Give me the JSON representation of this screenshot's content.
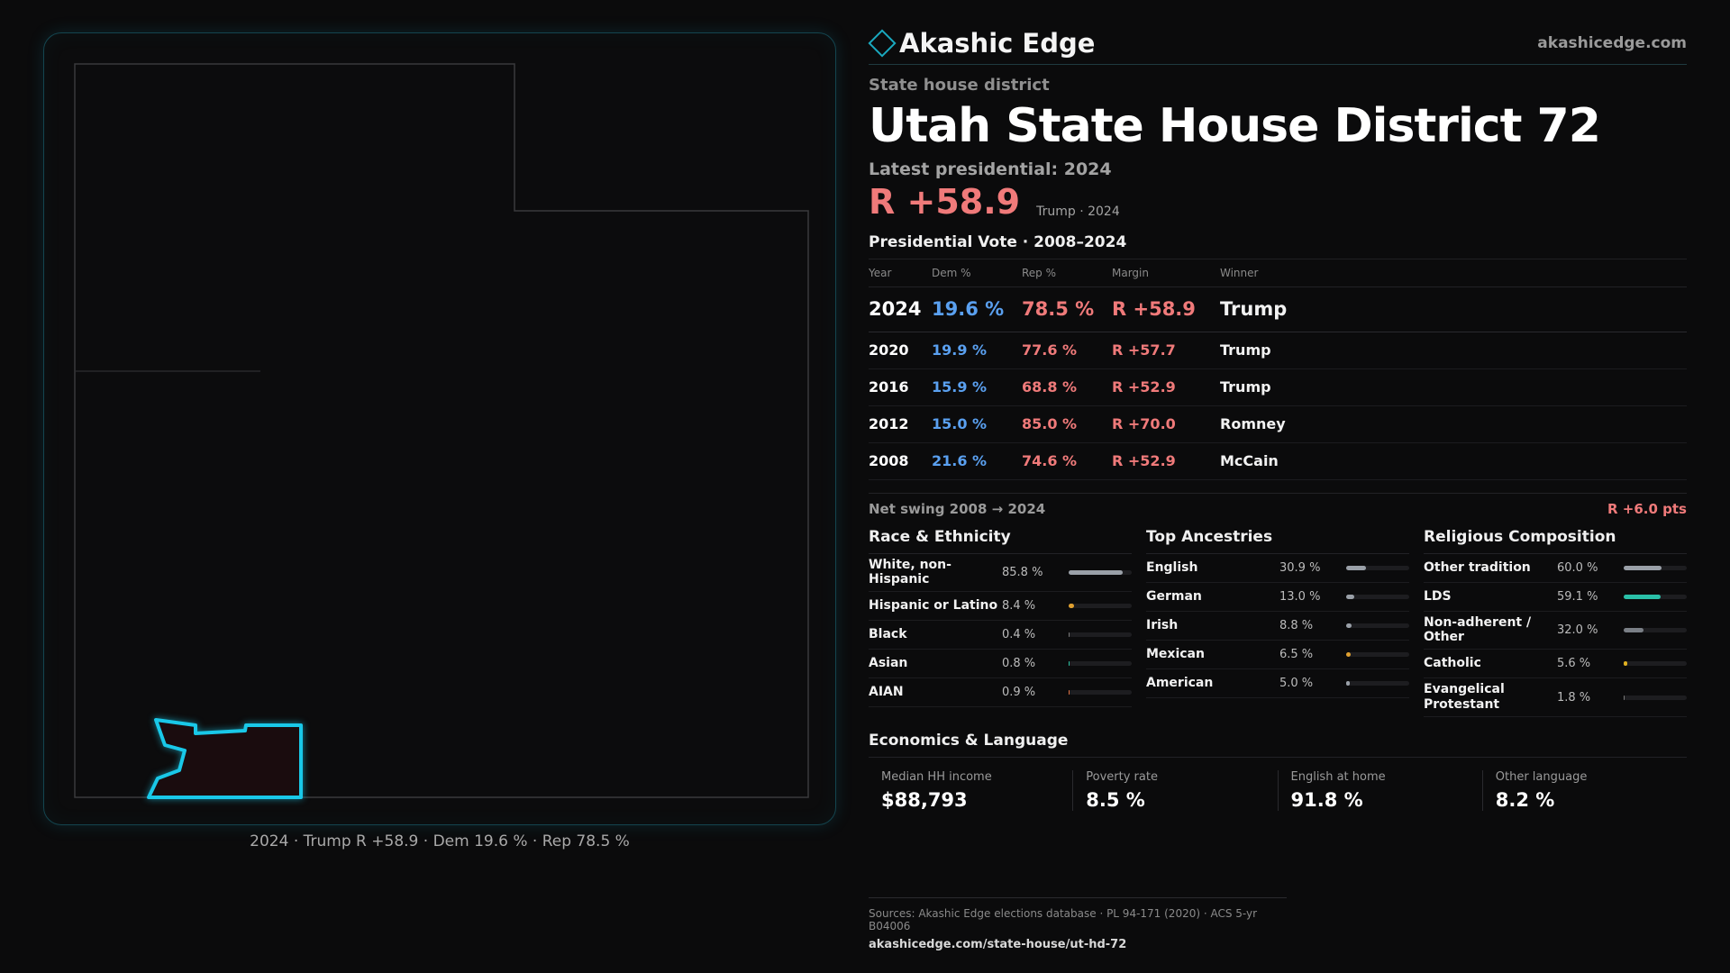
{
  "brand": {
    "name": "Akashic Edge",
    "url": "akashicedge.com",
    "logo_icon": "diamond-icon"
  },
  "district": {
    "type": "State house district",
    "title": "Utah State House District 72",
    "latest_label": "Latest presidential: 2024",
    "margin": "R +58.9",
    "margin_sub": "Trump · 2024"
  },
  "votes": {
    "heading": "Presidential Vote · 2008–2024",
    "columns": [
      "Year",
      "Dem %",
      "Rep %",
      "Margin",
      "Winner"
    ],
    "rows": [
      {
        "year": "2024",
        "dem": "19.6 %",
        "rep": "78.5 %",
        "margin": "R +58.9",
        "winner": "Trump"
      },
      {
        "year": "2020",
        "dem": "19.9 %",
        "rep": "77.6 %",
        "margin": "R +57.7",
        "winner": "Trump"
      },
      {
        "year": "2016",
        "dem": "15.9 %",
        "rep": "68.8 %",
        "margin": "R +52.9",
        "winner": "Trump"
      },
      {
        "year": "2012",
        "dem": "15.0 %",
        "rep": "85.0 %",
        "margin": "R +70.0",
        "winner": "Romney"
      },
      {
        "year": "2008",
        "dem": "21.6 %",
        "rep": "74.6 %",
        "margin": "R +52.9",
        "winner": "McCain"
      }
    ]
  },
  "swing": {
    "label": "Net swing 2008 → 2024",
    "value": "R +6.0 pts"
  },
  "race": {
    "heading": "Race & Ethnicity",
    "items": [
      {
        "label": "White, non-Hispanic",
        "value": "85.8 %",
        "pct": 85.8,
        "color": "#9aa0a8"
      },
      {
        "label": "Hispanic or Latino",
        "value": "8.4 %",
        "pct": 8.4,
        "color": "#e0a030"
      },
      {
        "label": "Black",
        "value": "0.4 %",
        "pct": 0.4,
        "color": "#7a7a7a"
      },
      {
        "label": "Asian",
        "value": "0.8 %",
        "pct": 0.8,
        "color": "#2ac0a0"
      },
      {
        "label": "AIAN",
        "value": "0.9 %",
        "pct": 0.9,
        "color": "#e07040"
      }
    ]
  },
  "ancestry": {
    "heading": "Top Ancestries",
    "items": [
      {
        "label": "English",
        "value": "30.9 %",
        "pct": 30.9,
        "color": "#9aa0a8"
      },
      {
        "label": "German",
        "value": "13.0 %",
        "pct": 13.0,
        "color": "#9aa0a8"
      },
      {
        "label": "Irish",
        "value": "8.8 %",
        "pct": 8.8,
        "color": "#9aa0a8"
      },
      {
        "label": "Mexican",
        "value": "6.5 %",
        "pct": 6.5,
        "color": "#e0a030"
      },
      {
        "label": "American",
        "value": "5.0 %",
        "pct": 5.0,
        "color": "#9aa0a8"
      }
    ]
  },
  "religion": {
    "heading": "Religious Composition",
    "items": [
      {
        "label": "Other tradition",
        "value": "60.0 %",
        "pct": 60.0,
        "color": "#9aa0a8"
      },
      {
        "label": "LDS",
        "value": "59.1 %",
        "pct": 59.1,
        "color": "#2ac0a8"
      },
      {
        "label": "Non-adherent / Other",
        "value": "32.0 %",
        "pct": 32.0,
        "color": "#7a7f86"
      },
      {
        "label": "Catholic",
        "value": "5.6 %",
        "pct": 5.6,
        "color": "#e0b020"
      },
      {
        "label": "Evangelical Protestant",
        "value": "1.8 %",
        "pct": 1.8,
        "color": "#7a7a7a"
      }
    ]
  },
  "economics": {
    "heading": "Economics & Language",
    "items": [
      {
        "label": "Median HH income",
        "value": "$88,793"
      },
      {
        "label": "Poverty rate",
        "value": "8.5 %"
      },
      {
        "label": "English at home",
        "value": "91.8 %"
      },
      {
        "label": "Other language",
        "value": "8.2 %"
      }
    ]
  },
  "map": {
    "caption": "2024 · Trump R +58.9 · Dem 19.6 % · Rep 78.5 %",
    "highlight_color": "#19c8e8"
  },
  "sources": {
    "line": "Sources: Akashic Edge elections database · PL 94-171 (2020) · ACS 5-yr B04006",
    "url": "akashicedge.com/state-house/ut-hd-72"
  }
}
